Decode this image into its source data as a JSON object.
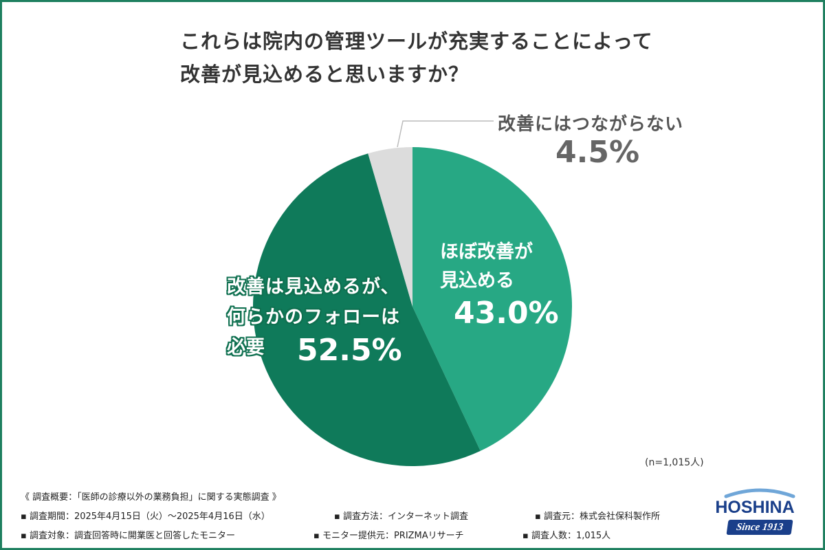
{
  "title_lines": [
    "これらは院内の管理ツールが充実することによって",
    "改善が見込めると思いますか？"
  ],
  "chart_data": {
    "type": "pie",
    "slices": [
      {
        "label": "ほぼ改善が見込める",
        "value": 43.0,
        "value_text": "43.0%",
        "color": "#27a884"
      },
      {
        "label": "改善は見込めるが、何らかのフォローは必要",
        "value": 52.5,
        "value_text": "52.5%",
        "color": "#0f7a5a"
      },
      {
        "label": "改善にはつながらない",
        "value": 4.5,
        "value_text": "4.5%",
        "color": "#dcdcdc"
      }
    ]
  },
  "labels": {
    "right_lines": [
      "ほぼ改善が",
      "見込める"
    ],
    "left_lines": [
      "改善は見込めるが、",
      "何らかのフォローは",
      "必要"
    ],
    "small_label": "改善にはつながらない"
  },
  "sample_size": "(n=1,015人)",
  "footer": {
    "heading": "《 調査概要：「医師の診療以外の業務負担」に関する実態調査 》",
    "row1": [
      "▪ 調査期間：2025年4月15日（火）～2025年4月16日（水）",
      "▪ 調査方法：インターネット調査",
      "▪ 調査元：株式会社保科製作所"
    ],
    "row2": [
      "▪ 調査対象：調査回答時に開業医と回答したモニター",
      "▪ モニター提供元：PRIZMAリサーチ",
      "▪ 調査人数：1,015人"
    ]
  },
  "logo": {
    "word": "HOSHINA",
    "since": "Since 1913",
    "color": "#1a3f8a"
  }
}
